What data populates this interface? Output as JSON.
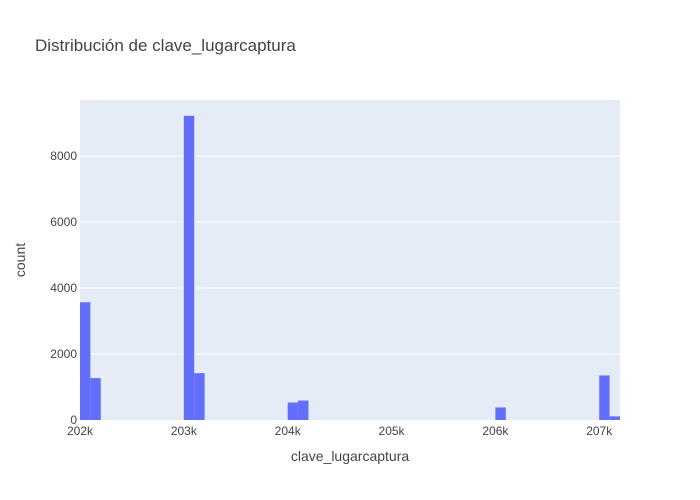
{
  "chart_data": {
    "type": "bar",
    "title": "Distribución de clave_lugarcaptura",
    "xlabel": "clave_lugarcaptura",
    "ylabel": "count",
    "xlim": [
      202000,
      207200
    ],
    "ylim": [
      0,
      9700
    ],
    "bin_width": 100,
    "x_ticks": [
      202000,
      203000,
      204000,
      205000,
      206000,
      207000
    ],
    "x_tick_labels": [
      "202k",
      "203k",
      "204k",
      "205k",
      "206k",
      "207k"
    ],
    "y_ticks": [
      0,
      2000,
      4000,
      6000,
      8000
    ],
    "y_tick_labels": [
      "0",
      "2000",
      "4000",
      "6000",
      "8000"
    ],
    "bins": [
      {
        "x0": 202000,
        "x1": 202100,
        "count": 3570
      },
      {
        "x0": 202100,
        "x1": 202200,
        "count": 1270
      },
      {
        "x0": 203000,
        "x1": 203100,
        "count": 9220
      },
      {
        "x0": 203100,
        "x1": 203200,
        "count": 1420
      },
      {
        "x0": 204000,
        "x1": 204100,
        "count": 530
      },
      {
        "x0": 204100,
        "x1": 204200,
        "count": 590
      },
      {
        "x0": 206000,
        "x1": 206100,
        "count": 380
      },
      {
        "x0": 207000,
        "x1": 207100,
        "count": 1350
      },
      {
        "x0": 207100,
        "x1": 207200,
        "count": 110
      }
    ],
    "grid": true,
    "colors": {
      "bar": "#636efa",
      "plot_bg": "#e5ecf6",
      "grid": "#ffffff",
      "text": "#444444"
    }
  }
}
